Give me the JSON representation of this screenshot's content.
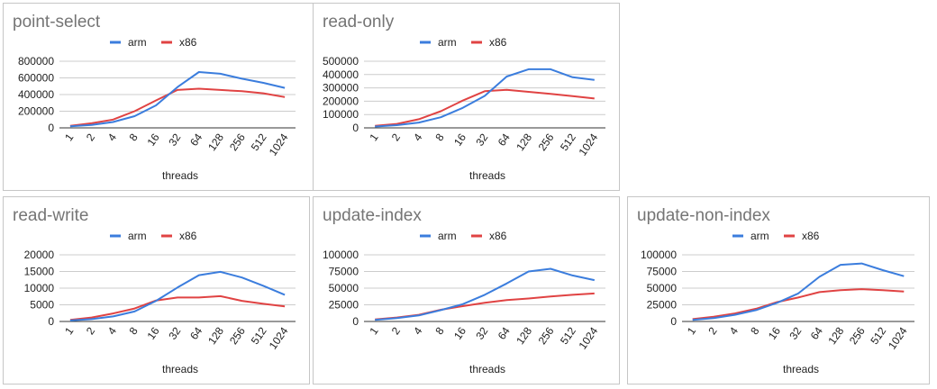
{
  "colors": {
    "arm": "#3b7ddd",
    "x86": "#e04343"
  },
  "chart_data": [
    {
      "type": "line",
      "title": "point-select",
      "xlabel": "threads",
      "ylabel": "",
      "categories": [
        "1",
        "2",
        "4",
        "8",
        "16",
        "32",
        "64",
        "128",
        "256",
        "512",
        "1024"
      ],
      "yticks": [
        "800000",
        "600000",
        "400000",
        "200000",
        "0"
      ],
      "ylim": [
        0,
        800000
      ],
      "legend": "top",
      "grid": true,
      "series": [
        {
          "name": "arm",
          "values": [
            20000,
            35000,
            70000,
            140000,
            270000,
            490000,
            670000,
            650000,
            590000,
            540000,
            480000
          ]
        },
        {
          "name": "x86",
          "values": [
            25000,
            55000,
            100000,
            200000,
            330000,
            455000,
            470000,
            455000,
            440000,
            415000,
            370000
          ]
        }
      ]
    },
    {
      "type": "line",
      "title": "read-only",
      "xlabel": "threads",
      "ylabel": "",
      "categories": [
        "1",
        "2",
        "4",
        "8",
        "16",
        "32",
        "64",
        "128",
        "256",
        "512",
        "1024"
      ],
      "yticks": [
        "500000",
        "400000",
        "300000",
        "200000",
        "100000",
        "0"
      ],
      "ylim": [
        0,
        500000
      ],
      "legend": "top",
      "grid": true,
      "series": [
        {
          "name": "arm",
          "values": [
            10000,
            20000,
            40000,
            80000,
            150000,
            240000,
            385000,
            440000,
            440000,
            380000,
            360000
          ]
        },
        {
          "name": "x86",
          "values": [
            15000,
            30000,
            65000,
            125000,
            205000,
            275000,
            285000,
            270000,
            255000,
            238000,
            220000
          ]
        }
      ]
    },
    {
      "type": "line",
      "title": "read-write",
      "xlabel": "threads",
      "ylabel": "",
      "categories": [
        "1",
        "2",
        "4",
        "8",
        "16",
        "32",
        "64",
        "128",
        "256",
        "512",
        "1024"
      ],
      "yticks": [
        "20000",
        "15000",
        "10000",
        "5000",
        "0"
      ],
      "ylim": [
        0,
        20000
      ],
      "legend": "top",
      "grid": true,
      "series": [
        {
          "name": "arm",
          "values": [
            300,
            700,
            1500,
            3000,
            6200,
            10200,
            13900,
            14900,
            13200,
            10700,
            8000
          ]
        },
        {
          "name": "x86",
          "values": [
            500,
            1200,
            2400,
            3900,
            6300,
            7200,
            7200,
            7600,
            6200,
            5300,
            4500
          ]
        }
      ]
    },
    {
      "type": "line",
      "title": "update-index",
      "xlabel": "threads",
      "ylabel": "",
      "categories": [
        "1",
        "2",
        "4",
        "8",
        "16",
        "32",
        "64",
        "128",
        "256",
        "512",
        "1024"
      ],
      "yticks": [
        "100000",
        "75000",
        "50000",
        "25000",
        "0"
      ],
      "ylim": [
        0,
        100000
      ],
      "legend": "top",
      "grid": true,
      "series": [
        {
          "name": "arm",
          "values": [
            2500,
            5000,
            9000,
            17000,
            26000,
            40000,
            57000,
            75000,
            79000,
            69000,
            62000
          ]
        },
        {
          "name": "x86",
          "values": [
            3000,
            6000,
            10000,
            17500,
            23000,
            28000,
            32000,
            34500,
            37500,
            40000,
            42000
          ]
        }
      ]
    },
    {
      "type": "line",
      "title": "update-non-index",
      "xlabel": "threads",
      "ylabel": "",
      "categories": [
        "1",
        "2",
        "4",
        "8",
        "16",
        "32",
        "64",
        "128",
        "256",
        "512",
        "1024"
      ],
      "yticks": [
        "100000",
        "75000",
        "50000",
        "25000",
        "0"
      ],
      "ylim": [
        0,
        100000
      ],
      "legend": "top",
      "grid": true,
      "series": [
        {
          "name": "arm",
          "values": [
            2500,
            5000,
            10000,
            17000,
            28000,
            42000,
            67000,
            85000,
            87000,
            77000,
            68000
          ]
        },
        {
          "name": "x86",
          "values": [
            3500,
            7000,
            12000,
            19000,
            29000,
            36000,
            44000,
            47000,
            48500,
            47000,
            45000
          ]
        }
      ]
    }
  ]
}
